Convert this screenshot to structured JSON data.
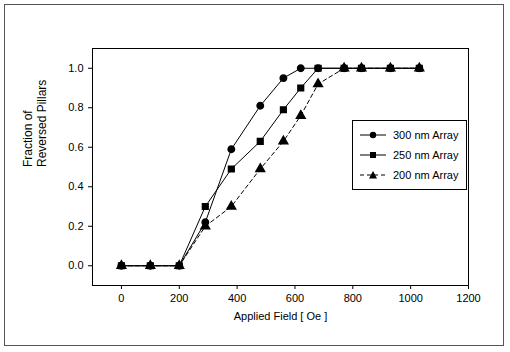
{
  "chart_data": {
    "type": "line",
    "x_label": "Applied Field [ Oe ]",
    "y_label": "Fraction of\nReversed Pillars",
    "x": [
      0,
      100,
      200,
      290,
      380,
      480,
      560,
      620,
      680,
      770,
      830,
      930,
      1030
    ],
    "series": [
      {
        "name": "300 nm Array",
        "color": "#000000",
        "marker": "circle",
        "line_style": "solid",
        "values": [
          0,
          0,
          0,
          0.22,
          0.59,
          0.81,
          0.95,
          1.0,
          1.0,
          1.0,
          1.0,
          1.0,
          1.0
        ]
      },
      {
        "name": "250 nm Array",
        "color": "#000000",
        "marker": "square",
        "line_style": "solid",
        "values": [
          0,
          0,
          0,
          0.3,
          0.49,
          0.63,
          0.79,
          0.9,
          1.0,
          1.0,
          1.0,
          1.0,
          1.0
        ]
      },
      {
        "name": "200 nm Array",
        "color": "#000000",
        "marker": "triangle",
        "line_style": "dashed",
        "values": [
          0,
          0,
          0,
          0.2,
          0.3,
          0.49,
          0.63,
          0.76,
          0.92,
          1.0,
          1.0,
          1.0,
          1.0
        ]
      }
    ],
    "xlim": [
      -100,
      1200
    ],
    "xticks": [
      0,
      200,
      400,
      600,
      800,
      1000,
      1200
    ],
    "ylim": [
      -0.1,
      1.1
    ],
    "yticks": [
      {
        "value": 0,
        "label": "0.0"
      },
      {
        "value": 0.2,
        "label": "0.2"
      },
      {
        "value": 0.4,
        "label": "0.4"
      },
      {
        "value": 0.6,
        "label": "0.6"
      },
      {
        "value": 0.8,
        "label": "0.8"
      },
      {
        "value": 1.0,
        "label": "1.0"
      }
    ],
    "grid": false,
    "legend": "center right"
  }
}
